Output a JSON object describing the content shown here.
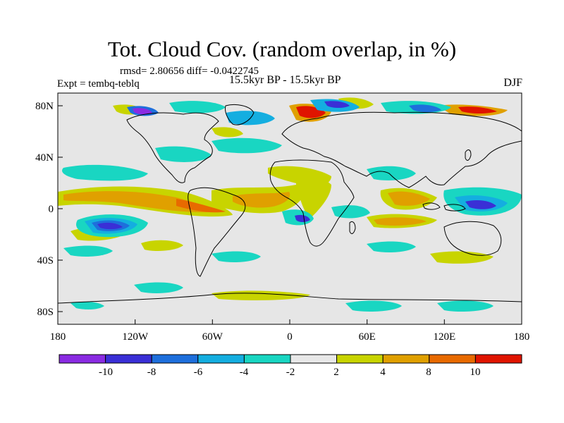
{
  "title": "Tot. Cloud Cov. (random overlap, in %)",
  "stats": "rmsd= 2.80656  diff= -0.0422745",
  "experiment": "Expt = tembq-teblq",
  "period": "15.5kyr BP - 15.5kyr BP",
  "season": "DJF",
  "map": {
    "x_ticks": [
      "180",
      "120W",
      "60W",
      "0",
      "60E",
      "120E",
      "180"
    ],
    "y_ticks": [
      "80N",
      "40N",
      "0",
      "40S",
      "80S"
    ]
  },
  "colorbar": {
    "labels": [
      "-10",
      "-8",
      "-6",
      "-4",
      "-2",
      "2",
      "4",
      "8",
      "10"
    ],
    "colors": [
      "#8a2be2",
      "#3a2fd6",
      "#1e6fdc",
      "#14aee0",
      "#19d6c2",
      "#e8e8e8",
      "#c8d400",
      "#e0a000",
      "#e86a00",
      "#e01400"
    ]
  },
  "colors": {
    "land_outline": "#000000",
    "ocean_fill": "#e6e6e6"
  }
}
